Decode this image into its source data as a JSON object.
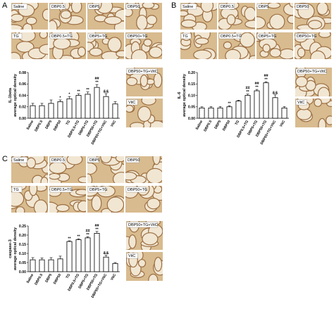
{
  "panels": [
    {
      "label": "A",
      "images": [
        "Saline",
        "DBP0.5",
        "DBP5",
        "DBP50",
        "TG",
        "DBP0.5+TG",
        "DBP5+TG",
        "DBP50+TG",
        "DBP50+TG+VitC",
        "VitC"
      ]
    },
    {
      "label": "B",
      "images": [
        "Saline",
        "DBP0.5",
        "DBP5",
        "DBP50",
        "TG",
        "DBP0.5+TG",
        "DBP5+TG",
        "DBP50+TG",
        "DBP50+TG+VitC",
        "VitC"
      ]
    },
    {
      "label": "C",
      "images": [
        "Saline",
        "DBP0.5",
        "DBP5",
        "DBP50",
        "TG",
        "DBP0.5+TG",
        "DBP5+TG",
        "DBP50+TG",
        "DBP50+TG+VitC",
        "VitC"
      ]
    }
  ],
  "chart_data": [
    {
      "type": "bar",
      "y_label": [
        "IL-1beta",
        "average optical density"
      ],
      "categories": [
        "Saline",
        "DBP0.5",
        "DBP5",
        "DBP50",
        "TG",
        "DBP0.5+TG",
        "DBP5+TG",
        "DBP50+TG",
        "DBP50+TG+VitC",
        "VitC"
      ],
      "values": [
        0.022,
        0.022,
        0.026,
        0.029,
        0.034,
        0.04,
        0.042,
        0.054,
        0.038,
        0.025
      ],
      "errors": [
        0.004,
        0.004,
        0.006,
        0.003,
        0.004,
        0.003,
        0.004,
        0.005,
        0.005,
        0.004
      ],
      "annotations": [
        null,
        null,
        null,
        [
          "*"
        ],
        [
          "*"
        ],
        [
          "**"
        ],
        [
          "**"
        ],
        [
          "**",
          "##"
        ],
        [
          "&&"
        ],
        null
      ],
      "color": "#ffffff",
      "edge_color": "#000000",
      "ylim": [
        0,
        0.08
      ],
      "yticks": [
        {
          "value": 0,
          "label": "0.00"
        },
        {
          "value": 0.02,
          "label": "0.02"
        },
        {
          "value": 0.04,
          "label": "0.04"
        },
        {
          "value": 0.06,
          "label": "0.06"
        },
        {
          "value": 0.08,
          "label": "0.08"
        }
      ]
    },
    {
      "type": "bar",
      "y_label": [
        "IL-6",
        "average optical density"
      ],
      "categories": [
        "Saline",
        "DBP0.5",
        "DBP5",
        "DBP50",
        "TG",
        "DBP0.5+TG",
        "DBP5+TG",
        "DBP50+TG",
        "DBP50+TG+VitC",
        "VitC"
      ],
      "values": [
        0.045,
        0.045,
        0.045,
        0.05,
        0.075,
        0.1,
        0.12,
        0.155,
        0.09,
        0.045
      ],
      "errors": [
        0.005,
        0.006,
        0.006,
        0.005,
        0.004,
        0.006,
        0.006,
        0.005,
        0.012,
        0.006
      ],
      "annotations": [
        null,
        null,
        null,
        [
          "**"
        ],
        null,
        [
          "**",
          "##"
        ],
        [
          "**",
          "##"
        ],
        [
          "**",
          "##"
        ],
        [
          "&&"
        ],
        null
      ],
      "color": "#ffffff",
      "edge_color": "#000000",
      "ylim": [
        0,
        0.2
      ],
      "yticks": [
        {
          "value": 0,
          "label": "0.00"
        },
        {
          "value": 0.05,
          "label": "0.05"
        },
        {
          "value": 0.1,
          "label": "0.10"
        },
        {
          "value": 0.15,
          "label": "0.15"
        },
        {
          "value": 0.2,
          "label": "0.20"
        }
      ]
    },
    {
      "type": "bar",
      "y_label": [
        "caspase-3",
        "average optical density"
      ],
      "categories": [
        "Saline",
        "DBP0.5",
        "DBP5",
        "DBP50",
        "TG",
        "DBP0.5+TG",
        "DBP5+TG",
        "DBP50+TG",
        "DBP50+TG+VitC",
        "VitC"
      ],
      "values": [
        0.065,
        0.065,
        0.065,
        0.07,
        0.165,
        0.175,
        0.185,
        0.21,
        0.08,
        0.045
      ],
      "errors": [
        0.012,
        0.01,
        0.012,
        0.015,
        0.004,
        0.005,
        0.006,
        0.01,
        0.01,
        0.005
      ],
      "annotations": [
        null,
        null,
        null,
        null,
        [
          "**"
        ],
        [
          "**"
        ],
        [
          "**",
          "##"
        ],
        [
          "**",
          "##"
        ],
        [
          "&&"
        ],
        null
      ],
      "color": "#ffffff",
      "edge_color": "#000000",
      "ylim": [
        0,
        0.25
      ],
      "yticks": [
        {
          "value": 0,
          "label": "0.00"
        },
        {
          "value": 0.05,
          "label": "0.05"
        },
        {
          "value": 0.1,
          "label": "0.10"
        },
        {
          "value": 0.15,
          "label": "0.15"
        },
        {
          "value": 0.2,
          "label": "0.20"
        },
        {
          "value": 0.25,
          "label": "0.25"
        }
      ]
    }
  ]
}
